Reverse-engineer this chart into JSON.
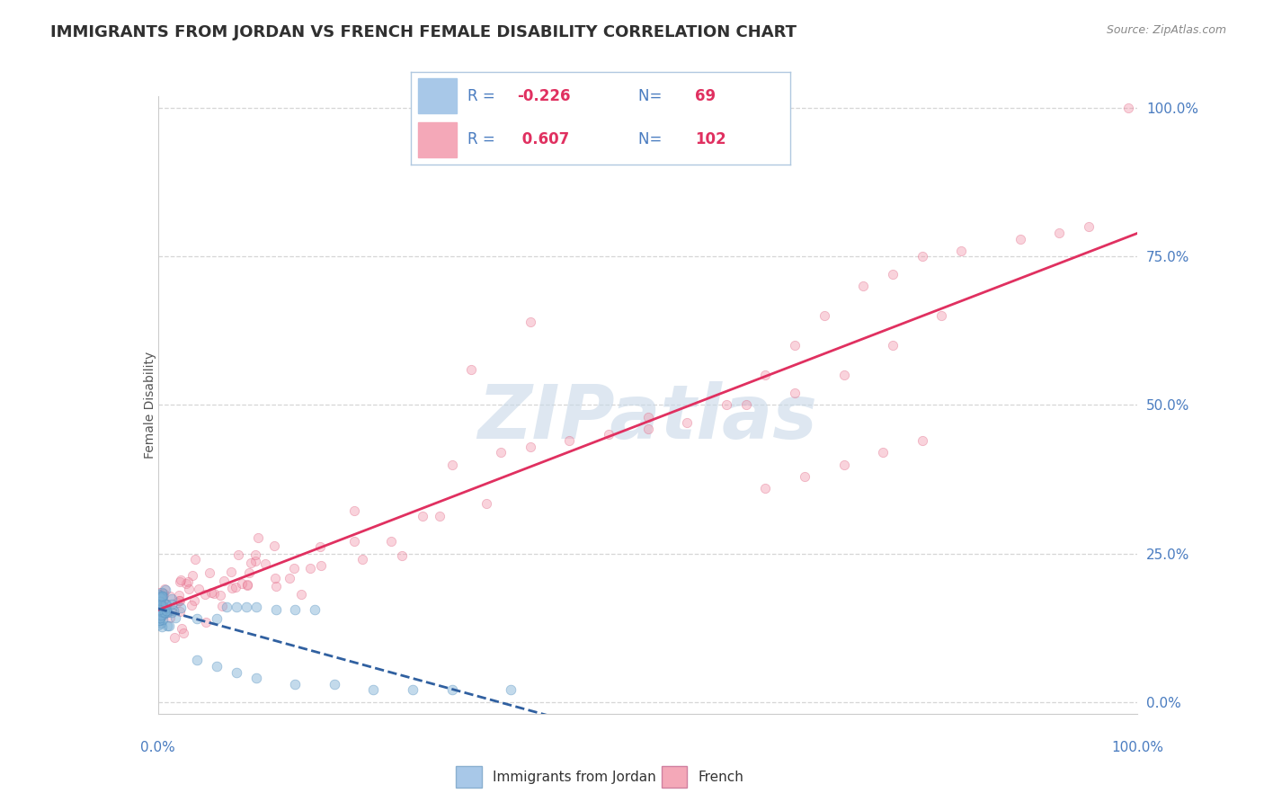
{
  "title": "IMMIGRANTS FROM JORDAN VS FRENCH FEMALE DISABILITY CORRELATION CHART",
  "source": "Source: ZipAtlas.com",
  "ylabel": "Female Disability",
  "right_yticks": [
    "0.0%",
    "25.0%",
    "50.0%",
    "75.0%",
    "100.0%"
  ],
  "right_ytick_vals": [
    0.0,
    0.25,
    0.5,
    0.75,
    1.0
  ],
  "watermark": "ZIPatlas",
  "watermark_color": "#c8d8e8",
  "blue_color": "#7bafd4",
  "pink_color": "#f093a8",
  "blue_edge_color": "#5590c0",
  "pink_edge_color": "#e06080",
  "blue_trend_color": "#3060a0",
  "pink_trend_color": "#e03060",
  "background_color": "#ffffff",
  "grid_color": "#cccccc",
  "title_color": "#303030",
  "axis_label_color": "#4a7cc0",
  "legend_R_color": "#e03060",
  "legend_N_color": "#e03060",
  "legend_text_color": "#4a7cc0",
  "blue_R": "-0.226",
  "blue_N": "69",
  "pink_R": "0.607",
  "pink_N": "102",
  "blue_legend_color": "#a8c8e8",
  "pink_legend_color": "#f4a8b8",
  "xlim": [
    0.0,
    1.0
  ],
  "ylim": [
    -0.02,
    1.02
  ],
  "blue_marker_size": 60,
  "pink_marker_size": 55,
  "blue_alpha": 0.45,
  "pink_alpha": 0.4
}
